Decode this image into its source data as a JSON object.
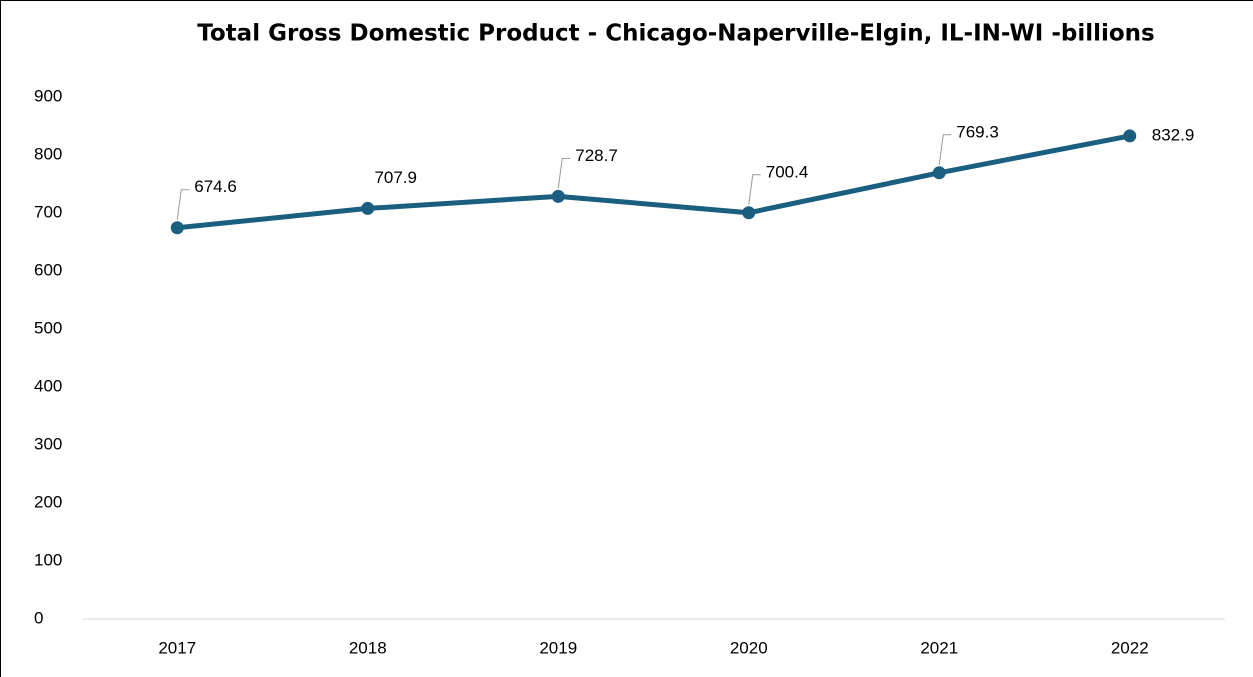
{
  "chart_data": {
    "type": "line",
    "title": "Total Gross Domestic Product - Chicago-Naperville-Elgin, IL-IN-WI -billions",
    "categories": [
      "2017",
      "2018",
      "2019",
      "2020",
      "2021",
      "2022"
    ],
    "series": [
      {
        "name": "Total Gross Domestic Product",
        "color": "#1b5f80",
        "values": [
          674.6,
          707.9,
          728.7,
          700.4,
          769.3,
          832.9
        ]
      }
    ],
    "ylim": [
      0,
      900
    ],
    "yticks": [
      0,
      100,
      200,
      300,
      400,
      500,
      600,
      700,
      800,
      900
    ],
    "grid": false
  }
}
